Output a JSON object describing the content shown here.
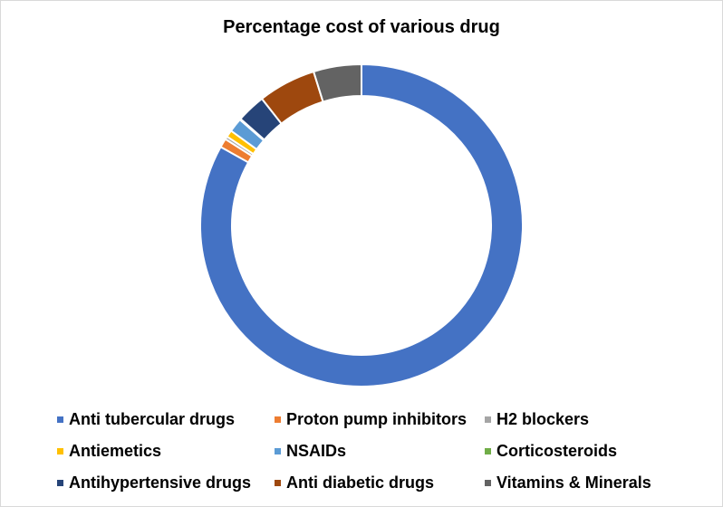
{
  "chart_data": {
    "type": "pie",
    "title": "Percentage cost of various drug",
    "categories": [
      "Anti tubercular drugs",
      "Proton pump inhibitors",
      "H2 blockers",
      "Antiemetics",
      "NSAIDs",
      "Corticosteroids",
      "Antihypertensive drugs",
      "Anti diabetic drugs",
      "Vitamins & Minerals"
    ],
    "values": [
      83.1,
      0.9,
      0.3,
      0.7,
      1.4,
      0.1,
      2.9,
      5.8,
      4.8
    ],
    "colors": [
      "#4472C4",
      "#ED7D31",
      "#A5A5A5",
      "#FFC000",
      "#5B9BD5",
      "#70AD47",
      "#264478",
      "#9E480E",
      "#636363"
    ],
    "legend_position": "bottom",
    "donut": true
  }
}
